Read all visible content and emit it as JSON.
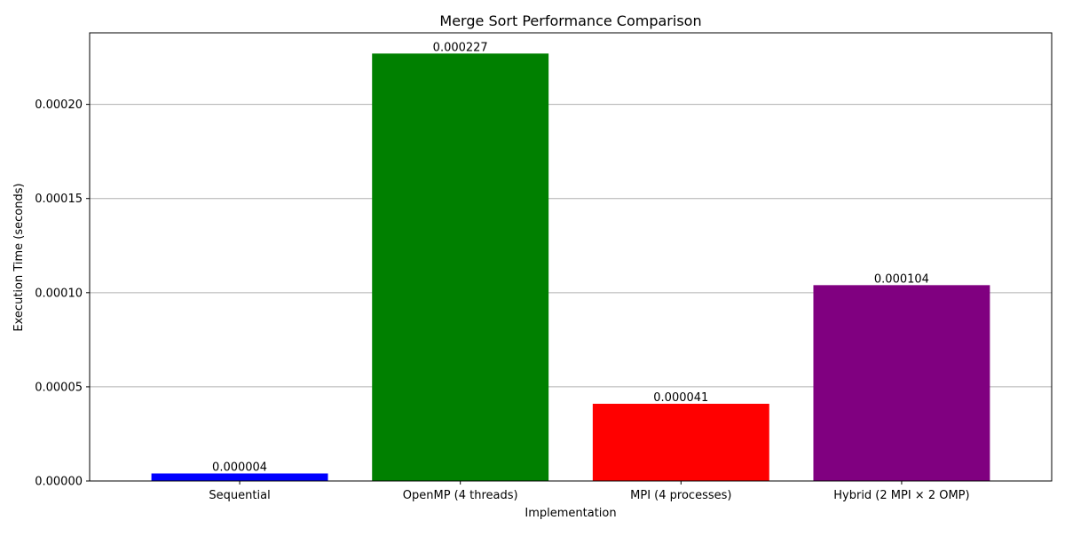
{
  "chart_data": {
    "type": "bar",
    "title": "Merge Sort Performance Comparison",
    "xlabel": "Implementation",
    "ylabel": "Execution Time (seconds)",
    "categories": [
      "Sequential",
      "OpenMP (4 threads)",
      "MPI (4 processes)",
      "Hybrid (2 MPI × 2 OMP)"
    ],
    "values": [
      4e-06,
      0.000227,
      4.1e-05,
      0.000104
    ],
    "value_labels": [
      "0.000004",
      "0.000227",
      "0.000041",
      "0.000104"
    ],
    "bar_colors": [
      "#0000ff",
      "#008000",
      "#ff0000",
      "#800080"
    ],
    "ylim": [
      0,
      0.000238
    ],
    "yticks": [
      0,
      5e-05,
      0.0001,
      0.00015,
      0.0002
    ],
    "ytick_labels": [
      "0.00000",
      "0.00005",
      "0.00010",
      "0.00015",
      "0.00020"
    ],
    "grid": "y-major",
    "grid_color": "#b0b0b0",
    "legend": "none"
  }
}
